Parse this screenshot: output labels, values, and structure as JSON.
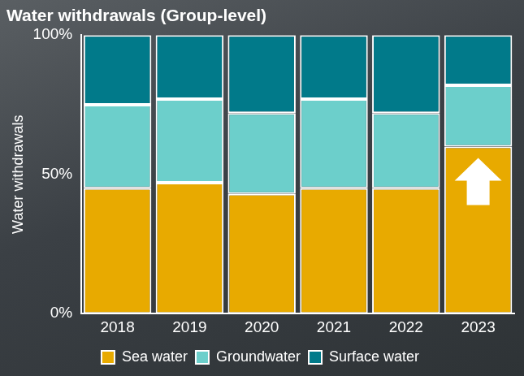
{
  "chart_data": {
    "type": "bar",
    "title": "Water withdrawals (Group-level)",
    "ylabel": "Water withdrawals",
    "categories": [
      "2018",
      "2019",
      "2020",
      "2021",
      "2022",
      "2023"
    ],
    "series": [
      {
        "name": "Sea water",
        "color": "#e8aa00",
        "values": [
          45,
          47,
          43,
          45,
          45,
          60
        ]
      },
      {
        "name": "Groundwater",
        "color": "#6ccfcb",
        "values": [
          30,
          30,
          29,
          32,
          27,
          22
        ]
      },
      {
        "name": "Surface water",
        "color": "#017a8a",
        "values": [
          25,
          23,
          28,
          23,
          28,
          18
        ]
      }
    ],
    "ylim": [
      0,
      100
    ],
    "yticks": [
      {
        "value": 0,
        "label": "0%"
      },
      {
        "value": 50,
        "label": "50%"
      },
      {
        "value": 100,
        "label": "100%"
      }
    ],
    "stacked": true,
    "grid": false,
    "legend": "bottom"
  }
}
